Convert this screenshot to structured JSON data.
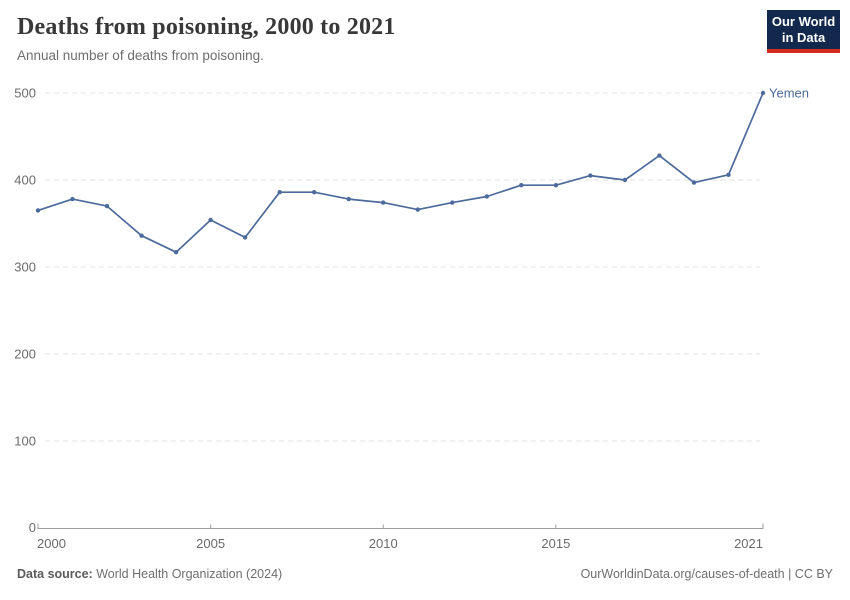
{
  "header": {
    "title": "Deaths from poisoning, 2000 to 2021",
    "subtitle": "Annual number of deaths from poisoning."
  },
  "logo": {
    "line1": "Our World",
    "line2": "in Data",
    "bg_color": "#12294d",
    "accent_color": "#d32b1e"
  },
  "chart_data": {
    "type": "line",
    "title": "Deaths from poisoning, 2000 to 2021",
    "subtitle": "Annual number of deaths from poisoning.",
    "x": [
      2000,
      2001,
      2002,
      2003,
      2004,
      2005,
      2006,
      2007,
      2008,
      2009,
      2010,
      2011,
      2012,
      2013,
      2014,
      2015,
      2016,
      2017,
      2018,
      2019,
      2020,
      2021
    ],
    "series": [
      {
        "name": "Yemen",
        "color": "#4C6A9C",
        "values": [
          365,
          378,
          370,
          336,
          317,
          354,
          334,
          386,
          386,
          378,
          374,
          366,
          374,
          381,
          394,
          394,
          405,
          400,
          428,
          397,
          406,
          500
        ]
      }
    ],
    "xlabel": "",
    "ylabel": "",
    "ylim": [
      0,
      500
    ],
    "yticks": [
      0,
      100,
      200,
      300,
      400,
      500
    ],
    "xticks": [
      2000,
      2005,
      2010,
      2015,
      2021
    ],
    "grid": "horizontal dashed",
    "legend_position": "end-of-line label",
    "end_label": "Yemen"
  },
  "footer": {
    "source_label": "Data source:",
    "source_value": "World Health Organization (2024)",
    "credit": "OurWorldinData.org/causes-of-death | CC BY"
  },
  "colors": {
    "line": "#4C6A9C",
    "grid": "#e2e2e2",
    "axis": "#9e9e9e",
    "tick_text": "#6b6b6b",
    "title_text": "#383838",
    "subtitle_text": "#6e6e6e"
  }
}
